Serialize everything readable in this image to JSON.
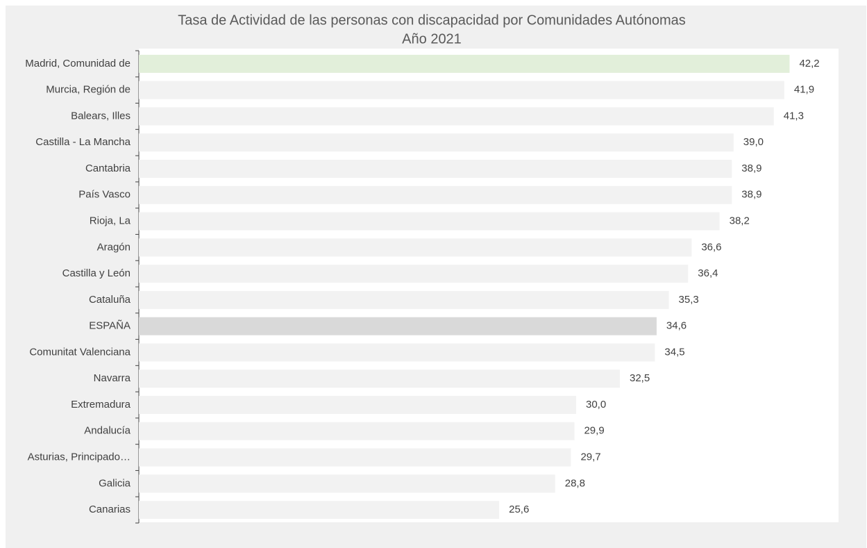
{
  "chart_data": {
    "type": "barh",
    "title": "Tasa de Actividad de las personas con discapacidad por Comunidades Autónomas",
    "subtitle": "Año 2021",
    "categories": [
      "Madrid, Comunidad de",
      "Murcia, Región de",
      "Balears, Illes",
      "Castilla - La Mancha",
      "Cantabria",
      "País Vasco",
      "Rioja, La",
      "Aragón",
      "Castilla y León",
      "Cataluña",
      "ESPAÑA",
      "Comunitat Valenciana",
      "Navarra",
      "Extremadura",
      "Andalucía",
      "Asturias, Principado…",
      "Galicia",
      "Canarias"
    ],
    "values": [
      42.2,
      41.9,
      41.3,
      39.0,
      38.9,
      38.9,
      38.2,
      36.6,
      36.4,
      35.3,
      34.6,
      34.5,
      32.5,
      30.0,
      29.9,
      29.7,
      28.8,
      25.6
    ],
    "value_labels": [
      "42,2",
      "41,9",
      "41,3",
      "39,0",
      "38,9",
      "38,9",
      "38,2",
      "36,6",
      "36,4",
      "35,3",
      "34,6",
      "34,5",
      "32,5",
      "30,0",
      "29,9",
      "29,7",
      "28,8",
      "25,6"
    ],
    "colors": [
      "#e2efda",
      "#f2f2f2",
      "#f2f2f2",
      "#f2f2f2",
      "#f2f2f2",
      "#f2f2f2",
      "#f2f2f2",
      "#f2f2f2",
      "#f2f2f2",
      "#f2f2f2",
      "#d9d9d9",
      "#f2f2f2",
      "#f2f2f2",
      "#f2f2f2",
      "#f2f2f2",
      "#f2f2f2",
      "#f2f2f2",
      "#f2f2f2"
    ],
    "xlim": [
      5,
      45
    ]
  }
}
